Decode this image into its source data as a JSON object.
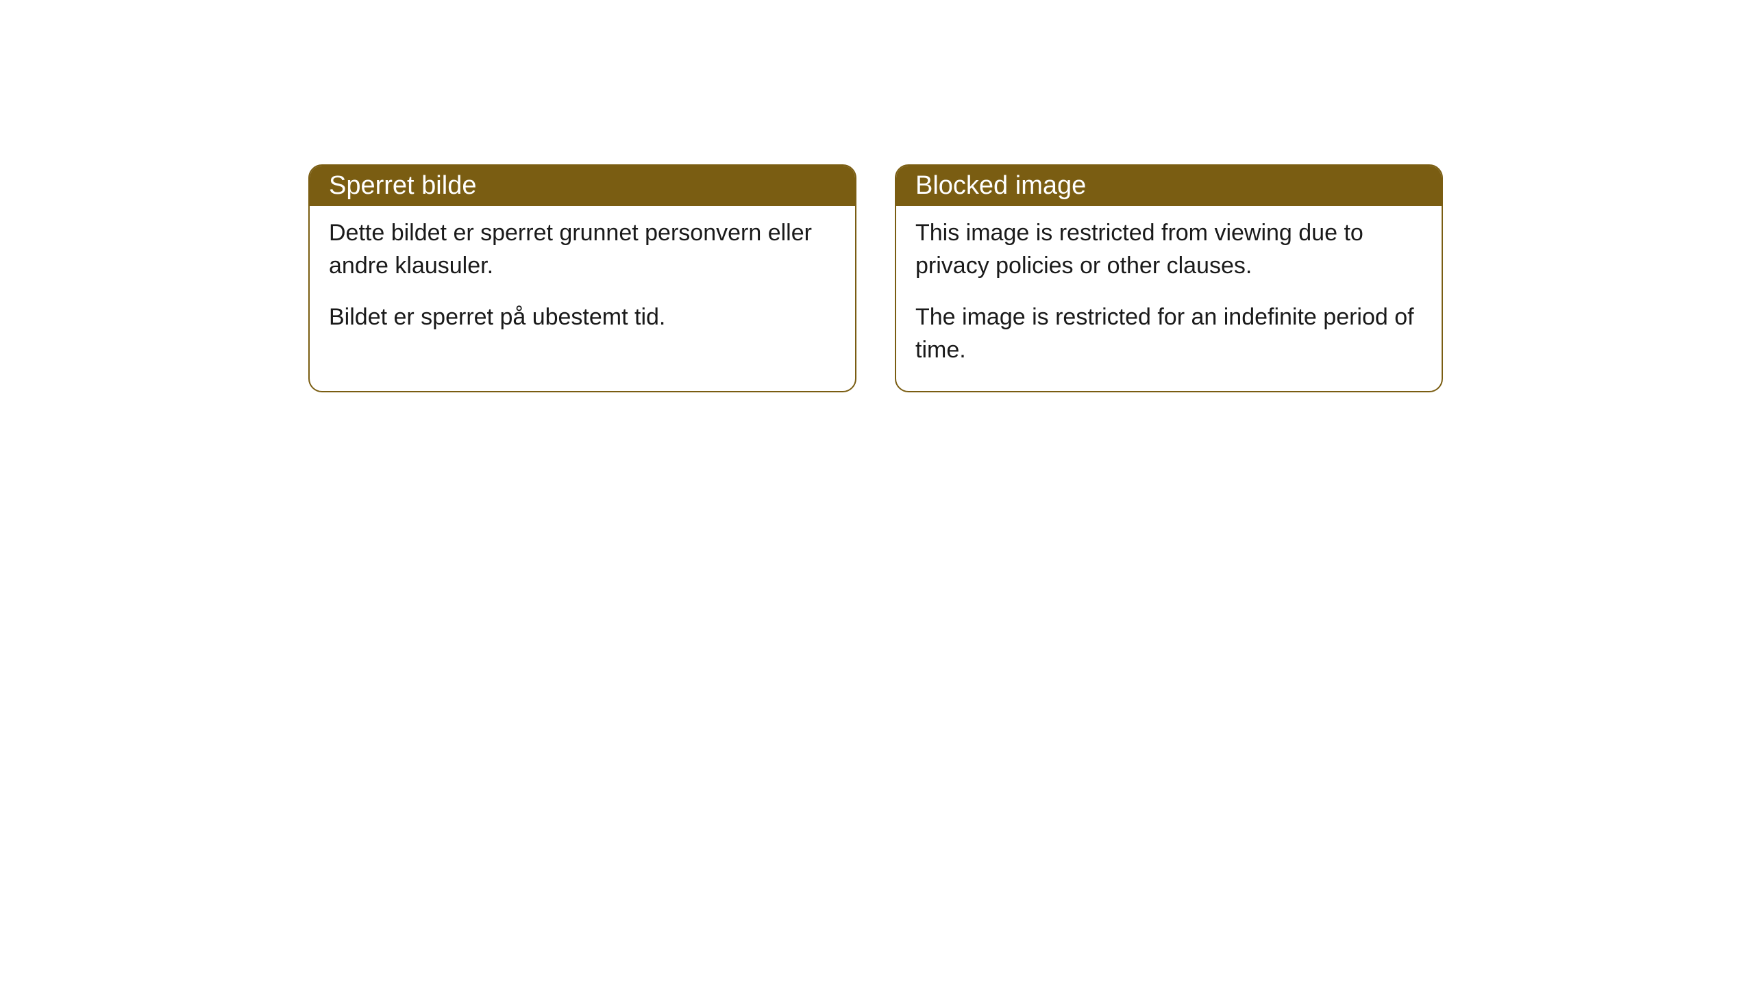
{
  "cards": [
    {
      "header": "Sperret bilde",
      "paragraph1": "Dette bildet er sperret grunnet personvern eller andre klausuler.",
      "paragraph2": "Bildet er sperret på ubestemt tid."
    },
    {
      "header": "Blocked image",
      "paragraph1": "This image is restricted from viewing due to privacy policies or other clauses.",
      "paragraph2": "The image is restricted for an indefinite period of time."
    }
  ],
  "styling": {
    "header_background": "#7a5d12",
    "header_text_color": "#ffffff",
    "border_color": "#7a5d12",
    "body_background": "#ffffff",
    "body_text_color": "#1a1a1a",
    "border_radius": 20,
    "header_font_size": 38,
    "body_font_size": 34
  }
}
